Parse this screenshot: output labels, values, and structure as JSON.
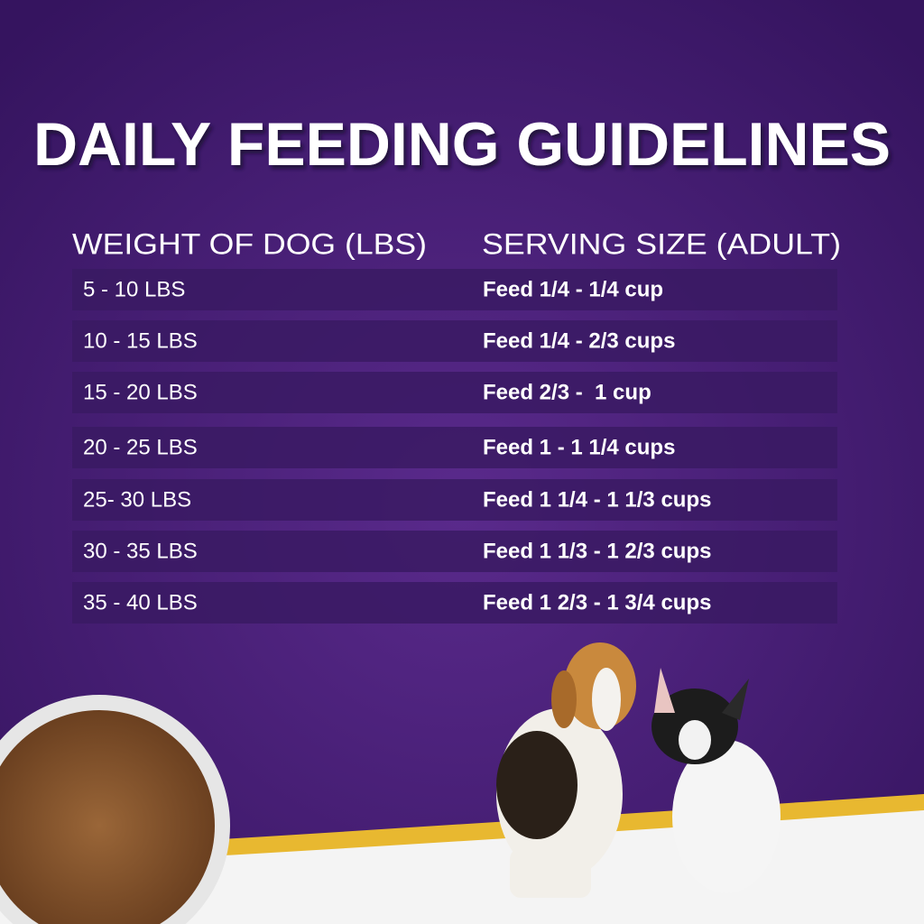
{
  "header": {
    "title": "DAILY FEEDING GUIDELINES"
  },
  "table": {
    "columns": [
      "WEIGHT OF DOG (LBS)",
      "SERVING SIZE (ADULT)"
    ],
    "rows": [
      [
        "5 - 10 LBS",
        "Feed 1/4 - 1/4 cup"
      ],
      [
        "10 - 15 LBS",
        "Feed 1/4 - 2/3 cups"
      ],
      [
        "15 - 20 LBS",
        "Feed 2/3 -  1 cup"
      ],
      [
        "20 - 25 LBS",
        "Feed 1 - 1 1/4 cups"
      ],
      [
        "25- 30 LBS",
        "Feed 1 1/4 - 1 1/3 cups"
      ],
      [
        "30 - 35 LBS",
        "Feed 1 1/3 - 1 2/3 cups"
      ],
      [
        "35 - 40 LBS",
        "Feed 1 2/3 - 1 3/4 cups"
      ]
    ]
  }
}
